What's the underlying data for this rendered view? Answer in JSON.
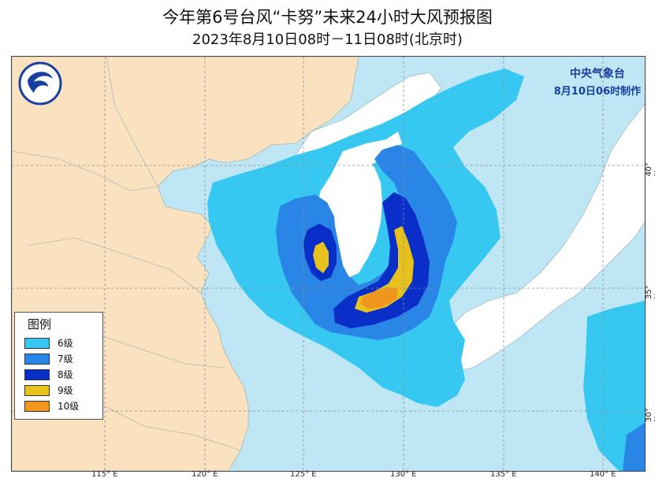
{
  "title_line1": "今年第6号台风“卡努”未来24小时大风预报图",
  "title_line2": "2023年8月10日08时－11日08时(北京时)",
  "agency_name": "中央气象台",
  "issue_time": "8月10日06时制作",
  "legend": {
    "title": "图例",
    "items": [
      {
        "label": "6级",
        "color": "#37c8f2"
      },
      {
        "label": "7级",
        "color": "#2a86e6"
      },
      {
        "label": "8级",
        "color": "#0a2fc8"
      },
      {
        "label": "9级",
        "color": "#e8c21c"
      },
      {
        "label": "10级",
        "color": "#f0961e"
      }
    ]
  },
  "longitude_labels": [
    "115° E",
    "120° E",
    "125° E",
    "130° E",
    "135° E",
    "140° E"
  ],
  "latitude_labels": [
    "40° N",
    "35° N",
    "30° N"
  ],
  "colors": {
    "land": "#fae1c0",
    "sea": "#bfe6f5",
    "unaffected_land": "#ffffff",
    "logo_blue": "#1a3fa0"
  },
  "logo_icon": "cma-logo-icon"
}
